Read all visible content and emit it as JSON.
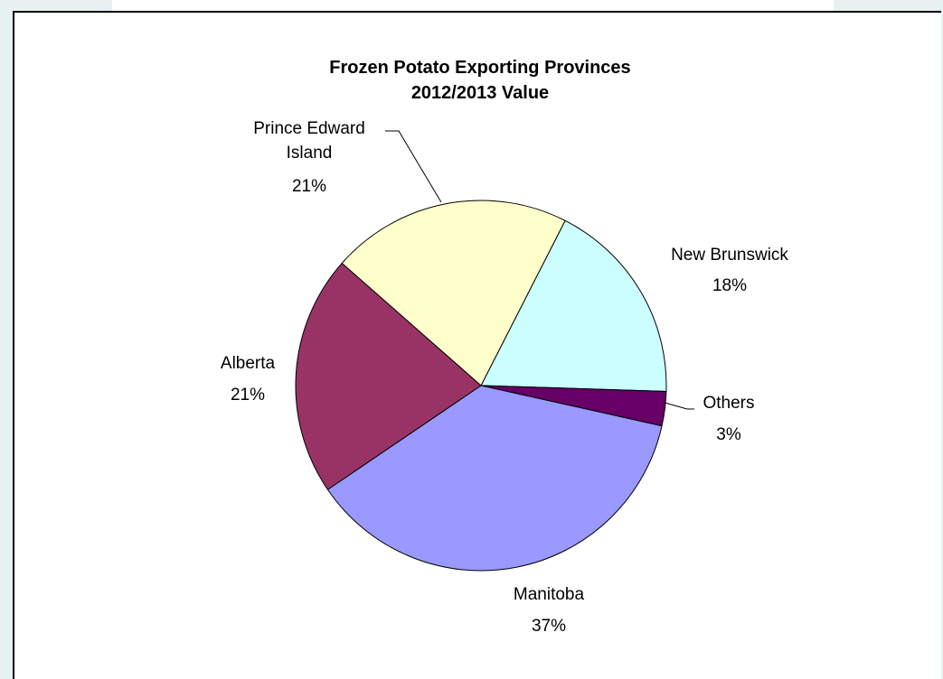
{
  "chart_data": {
    "type": "pie",
    "title": "Frozen Potato Exporting Provinces",
    "subtitle": "2012/2013 Value",
    "slices": [
      {
        "name": "New Brunswick",
        "value": 18,
        "label": "18%",
        "color": "#ccffff"
      },
      {
        "name": "Others",
        "value": 3,
        "label": "3%",
        "color": "#660066"
      },
      {
        "name": "Manitoba",
        "value": 37,
        "label": "37%",
        "color": "#9999ff"
      },
      {
        "name": "Alberta",
        "value": 21,
        "label": "21%",
        "color": "#993366"
      },
      {
        "name": "Prince Edward Island",
        "value": 21,
        "label": "21%",
        "color": "#ffffcc"
      }
    ]
  }
}
